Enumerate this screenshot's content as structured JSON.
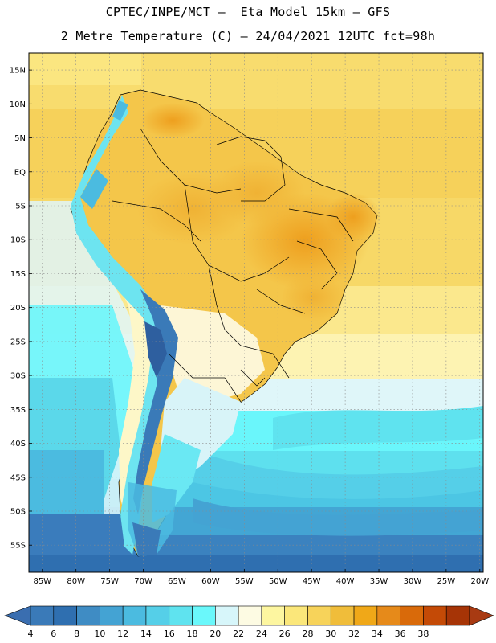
{
  "header": {
    "title_line1": "CPTEC/INPE/MCT –  Eta Model 15km – GFS",
    "title_line2": "2 Metre Temperature (C) – 24/04/2021 12UTC fct=98h"
  },
  "map": {
    "lat_labels": [
      "15N",
      "10N",
      "5N",
      "EQ",
      "5S",
      "10S",
      "15S",
      "20S",
      "25S",
      "30S",
      "35S",
      "40S",
      "45S",
      "50S",
      "55S"
    ],
    "lon_labels": [
      "85W",
      "80W",
      "75W",
      "70W",
      "65W",
      "60W",
      "55W",
      "50W",
      "45W",
      "40W",
      "35W",
      "30W",
      "25W",
      "20W"
    ],
    "lat_values": [
      15,
      10,
      5,
      0,
      -5,
      -10,
      -15,
      -20,
      -25,
      -30,
      -35,
      -40,
      -45,
      -50,
      -55
    ],
    "lon_values": [
      -85,
      -80,
      -75,
      -70,
      -65,
      -60,
      -55,
      -50,
      -45,
      -40,
      -35,
      -30,
      -25,
      -20
    ]
  },
  "colorbar": {
    "labels": [
      "4",
      "6",
      "8",
      "10",
      "12",
      "14",
      "16",
      "18",
      "20",
      "22",
      "24",
      "26",
      "28",
      "30",
      "32",
      "34",
      "36",
      "38"
    ],
    "colors": [
      "#3a7ab8",
      "#2f6fb0",
      "#3f8cc4",
      "#44a3d3",
      "#4bbbe0",
      "#55cfe8",
      "#5fe3ef",
      "#6af8fb",
      "#d7f6fa",
      "#fdfbe3",
      "#fdf6a0",
      "#fbe77a",
      "#f7d35a",
      "#f0bd3a",
      "#f0a818",
      "#e68a1a",
      "#d96a0a",
      "#c44a06",
      "#a63406"
    ],
    "under_color": "#3a6eb0",
    "over_color": "#a83a12"
  }
}
